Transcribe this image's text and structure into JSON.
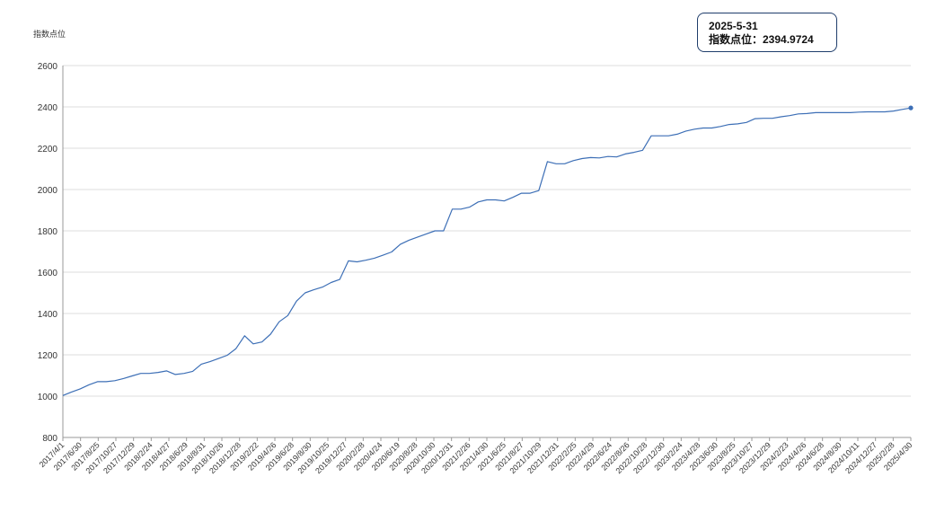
{
  "chart_data": {
    "type": "line",
    "ylabel": "指数点位",
    "ylim": [
      800,
      2600
    ],
    "yticks": [
      800,
      1000,
      1200,
      1400,
      1600,
      1800,
      2000,
      2200,
      2400,
      2600
    ],
    "grid": true,
    "line_color": "#3d6fb6",
    "x_tick_labels": [
      "2017/4/1",
      "2017/6/30",
      "2017/8/25",
      "2017/10/27",
      "2017/12/29",
      "2018/2/24",
      "2018/4/27",
      "2018/6/29",
      "2018/8/31",
      "2018/10/26",
      "2018/12/28",
      "2019/2/22",
      "2019/4/26",
      "2019/6/28",
      "2019/8/30",
      "2019/10/25",
      "2019/12/27",
      "2020/2/28",
      "2020/4/24",
      "2020/6/19",
      "2020/8/28",
      "2020/10/30",
      "2020/12/31",
      "2021/2/26",
      "2021/4/30",
      "2021/6/25",
      "2021/8/27",
      "2021/10/29",
      "2021/12/31",
      "2022/2/25",
      "2022/4/29",
      "2022/6/24",
      "2022/8/26",
      "2022/10/28",
      "2022/12/30",
      "2023/2/24",
      "2023/4/28",
      "2023/6/30",
      "2023/8/25",
      "2023/10/27",
      "2023/12/29",
      "2024/2/23",
      "2024/4/26",
      "2024/6/28",
      "2024/8/30",
      "2024/10/11",
      "2024/12/27",
      "2025/2/28",
      "2025/4/30"
    ],
    "series": [
      {
        "values": [
          1003,
          1020,
          1035,
          1055,
          1070,
          1070,
          1075,
          1085,
          1098,
          1110,
          1110,
          1115,
          1122,
          1105,
          1110,
          1120,
          1155,
          1167,
          1182,
          1198,
          1230,
          1292,
          1253,
          1262,
          1300,
          1360,
          1390,
          1460,
          1500,
          1515,
          1528,
          1550,
          1565,
          1655,
          1650,
          1658,
          1668,
          1682,
          1698,
          1735,
          1755,
          1770,
          1785,
          1800,
          1800,
          1905,
          1905,
          1915,
          1940,
          1950,
          1950,
          1945,
          1962,
          1982,
          1982,
          1995,
          2135,
          2125,
          2125,
          2140,
          2150,
          2155,
          2153,
          2160,
          2158,
          2172,
          2180,
          2190,
          2260,
          2260,
          2260,
          2268,
          2283,
          2292,
          2298,
          2298,
          2305,
          2315,
          2318,
          2325,
          2343,
          2345,
          2345,
          2352,
          2358,
          2366,
          2368,
          2372,
          2372,
          2372,
          2372,
          2372,
          2375,
          2376,
          2376,
          2376,
          2380,
          2388,
          2395
        ]
      }
    ],
    "tooltip": {
      "date": "2025-5-31",
      "text": "指数点位：2394.9724"
    }
  }
}
